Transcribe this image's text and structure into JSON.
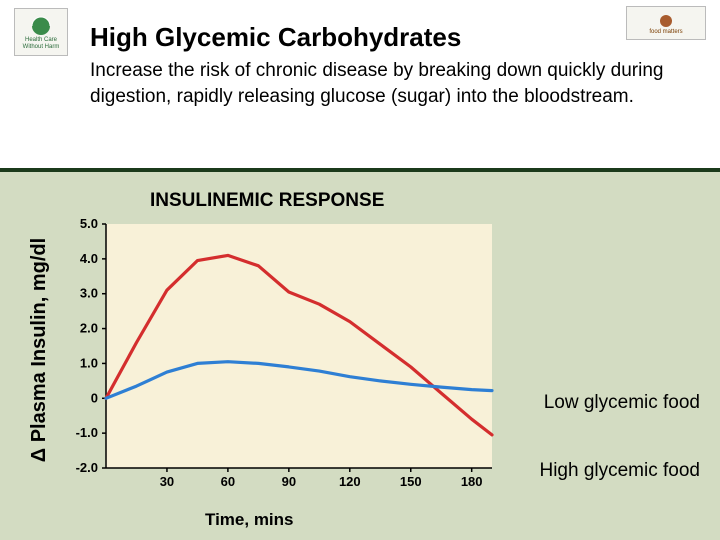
{
  "logos": {
    "left_text": "Health Care Without Harm",
    "right_text": "food matters"
  },
  "title": "High Glycemic Carbohydrates",
  "subtitle": "Increase the risk of chronic disease by breaking down quickly during digestion, rapidly releasing glucose (sugar) into the bloodstream.",
  "chart": {
    "type": "line",
    "title": "INSULINEMIC RESPONSE",
    "ylabel": "Δ Plasma Insulin, mg/dl",
    "xlabel": "Time, mins",
    "background_color": "#d3dcc2",
    "header_bg": "#ffffff",
    "plot_bg": "#f8f1d8",
    "xlim": [
      0,
      190
    ],
    "ylim": [
      -2.0,
      5.0
    ],
    "xticks": [
      30,
      60,
      90,
      120,
      150,
      180
    ],
    "yticks": [
      -2.0,
      -1.0,
      0,
      1.0,
      2.0,
      3.0,
      4.0,
      5.0
    ],
    "ytick_labels": [
      "-2.0",
      "-1.0",
      "0",
      "1.0",
      "2.0",
      "3.0",
      "4.0",
      "5.0"
    ],
    "tick_fontsize": 13,
    "series": [
      {
        "name": "high_glycemic",
        "color": "#d42e2e",
        "line_width": 3.2,
        "x": [
          0,
          15,
          30,
          45,
          60,
          75,
          90,
          105,
          120,
          135,
          150,
          165,
          180,
          190
        ],
        "y": [
          0.0,
          1.6,
          3.1,
          3.95,
          4.1,
          3.8,
          3.05,
          2.7,
          2.2,
          1.55,
          0.9,
          0.15,
          -0.6,
          -1.05
        ]
      },
      {
        "name": "low_glycemic",
        "color": "#2e7fd4",
        "line_width": 3.2,
        "x": [
          0,
          15,
          30,
          45,
          60,
          75,
          90,
          105,
          120,
          135,
          150,
          165,
          180,
          190
        ],
        "y": [
          0.0,
          0.35,
          0.75,
          1.0,
          1.05,
          1.0,
          0.9,
          0.78,
          0.62,
          0.5,
          0.4,
          0.32,
          0.25,
          0.22
        ]
      }
    ]
  },
  "legend": {
    "low": "Low glycemic food",
    "high": "High glycemic food"
  }
}
